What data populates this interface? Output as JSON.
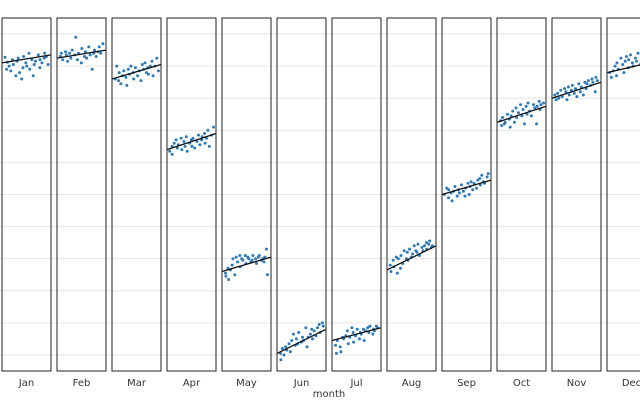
{
  "chart_data": {
    "type": "scatter",
    "subtype": "faceted seasonal subseries with per-month trend lines",
    "xlabel": "month",
    "ylabel": "",
    "ylim": [
      0,
      11
    ],
    "y_gridlines": [
      0.5,
      1.5,
      2.5,
      3.5,
      4.5,
      5.5,
      6.5,
      7.5,
      8.5,
      9.5,
      10.5
    ],
    "grid": true,
    "legend": "none",
    "point_color": "#2b7bba",
    "line_color": "#111111",
    "categories": [
      "Jan",
      "Feb",
      "Mar",
      "Apr",
      "May",
      "Jun",
      "Jul",
      "Aug",
      "Sep",
      "Oct",
      "Nov",
      "Dec"
    ],
    "series": [
      {
        "category": "Jan",
        "trend": [
          9.6,
          9.85
        ],
        "values": [
          9.78,
          9.4,
          9.62,
          9.5,
          9.35,
          9.7,
          9.55,
          9.2,
          9.65,
          9.75,
          9.3,
          9.1,
          9.45,
          9.8,
          9.6,
          9.5,
          9.9,
          9.4,
          9.7,
          9.2,
          9.55,
          9.65,
          9.85,
          9.45,
          9.7,
          9.6,
          9.75,
          9.9,
          9.8,
          9.55
        ]
      },
      {
        "category": "Feb",
        "trend": [
          9.75,
          10.0
        ],
        "values": [
          9.8,
          9.9,
          9.7,
          9.95,
          9.85,
          9.65,
          9.9,
          9.75,
          10.0,
          9.85,
          10.4,
          9.7,
          9.9,
          9.6,
          10.05,
          9.8,
          9.95,
          9.75,
          10.1,
          9.85,
          9.4,
          9.9,
          10.0,
          9.8,
          9.95,
          10.1,
          9.9,
          10.2
        ]
      },
      {
        "category": "Mar",
        "trend": [
          9.1,
          9.55
        ],
        "values": [
          9.1,
          9.5,
          9.05,
          9.3,
          8.95,
          9.2,
          9.35,
          9.15,
          8.9,
          9.4,
          9.25,
          9.5,
          9.3,
          9.1,
          9.45,
          9.2,
          9.35,
          9.05,
          9.55,
          9.4,
          9.6,
          9.3,
          9.45,
          9.25,
          9.5,
          9.65,
          9.2,
          9.5,
          9.75,
          9.35
        ]
      },
      {
        "category": "Apr",
        "trend": [
          6.9,
          7.4
        ],
        "values": [
          6.85,
          7.0,
          6.75,
          7.1,
          7.2,
          6.95,
          7.05,
          7.25,
          6.9,
          7.15,
          7.0,
          7.3,
          6.85,
          7.1,
          7.2,
          7.0,
          7.25,
          6.95,
          7.15,
          7.35,
          7.05,
          7.2,
          7.3,
          7.4,
          7.1,
          7.25,
          7.5,
          7.0,
          7.35,
          7.6
        ]
      },
      {
        "category": "May",
        "trend": [
          3.1,
          3.55
        ],
        "values": [
          3.05,
          2.95,
          3.2,
          2.85,
          3.15,
          3.3,
          3.5,
          3.0,
          3.55,
          3.4,
          3.6,
          3.25,
          3.5,
          3.45,
          3.6,
          3.35,
          3.55,
          3.5,
          3.4,
          3.45,
          3.6,
          3.5,
          3.35,
          3.55,
          3.6,
          3.45,
          3.5,
          3.4,
          3.55,
          3.8,
          3.0
        ]
      },
      {
        "category": "Jun",
        "trend": [
          0.55,
          1.3
        ],
        "values": [
          0.55,
          0.35,
          0.7,
          0.5,
          0.75,
          0.65,
          0.85,
          0.6,
          0.95,
          1.15,
          0.8,
          1.0,
          0.85,
          1.2,
          0.9,
          1.05,
          0.95,
          1.35,
          0.75,
          1.05,
          1.15,
          1.3,
          1.0,
          1.25,
          1.1,
          1.35,
          1.45,
          1.2,
          1.5,
          1.4
        ]
      },
      {
        "category": "Jul",
        "trend": [
          0.95,
          1.35
        ],
        "values": [
          0.8,
          0.55,
          0.95,
          0.75,
          0.6,
          1.05,
          1.0,
          1.1,
          1.25,
          0.85,
          1.05,
          1.35,
          1.2,
          0.9,
          1.1,
          1.3,
          1.0,
          1.2,
          1.15,
          1.3,
          0.95,
          1.25,
          1.35,
          1.2,
          1.4,
          1.15,
          1.3,
          1.25,
          1.4,
          1.35
        ]
      },
      {
        "category": "Aug",
        "trend": [
          3.15,
          3.9
        ],
        "values": [
          3.3,
          3.1,
          3.45,
          3.25,
          3.55,
          3.05,
          3.5,
          3.2,
          3.6,
          3.35,
          3.75,
          3.5,
          3.7,
          3.45,
          3.8,
          3.55,
          3.65,
          3.9,
          3.75,
          3.7,
          3.95,
          3.6,
          3.85,
          3.75,
          3.9,
          4.0,
          3.8,
          3.95,
          4.05,
          3.85,
          3.9
        ]
      },
      {
        "category": "Sep",
        "trend": [
          5.5,
          5.95
        ],
        "values": [
          5.5,
          5.7,
          5.4,
          5.65,
          5.55,
          5.3,
          5.6,
          5.75,
          5.45,
          5.65,
          5.55,
          5.8,
          5.6,
          5.45,
          5.7,
          5.85,
          5.5,
          5.75,
          5.9,
          5.65,
          5.85,
          5.7,
          5.95,
          6.0,
          5.8,
          6.1,
          5.9,
          5.85,
          6.05,
          6.15
        ]
      },
      {
        "category": "Oct",
        "trend": [
          7.75,
          8.25
        ],
        "values": [
          7.8,
          7.65,
          7.9,
          7.7,
          7.75,
          8.0,
          7.85,
          7.6,
          7.95,
          8.1,
          7.75,
          8.2,
          7.9,
          8.05,
          8.3,
          7.95,
          8.15,
          7.7,
          8.25,
          8.0,
          8.35,
          8.1,
          7.95,
          8.3,
          8.2,
          7.7,
          8.25,
          8.4,
          8.15,
          8.3,
          8.35
        ]
      },
      {
        "category": "Nov",
        "trend": [
          8.5,
          9.0
        ],
        "values": [
          8.6,
          8.45,
          8.65,
          8.5,
          8.75,
          8.55,
          8.8,
          8.7,
          8.45,
          8.85,
          8.6,
          8.75,
          8.9,
          8.65,
          8.8,
          8.55,
          8.95,
          8.7,
          8.85,
          8.6,
          9.0,
          8.8,
          8.95,
          9.05,
          8.9,
          9.1,
          9.0,
          8.7,
          9.15,
          9.05
        ]
      },
      {
        "category": "Dec",
        "trend": [
          9.3,
          9.65
        ],
        "values": [
          9.3,
          9.15,
          9.35,
          9.5,
          9.2,
          9.6,
          9.4,
          9.75,
          9.55,
          9.3,
          9.65,
          9.8,
          9.45,
          9.7,
          9.85,
          9.6,
          9.5,
          9.75,
          9.65,
          9.9,
          9.55,
          9.7,
          9.6,
          9.8,
          9.65,
          9.75,
          9.6,
          9.7,
          9.8,
          9.65
        ]
      }
    ]
  }
}
